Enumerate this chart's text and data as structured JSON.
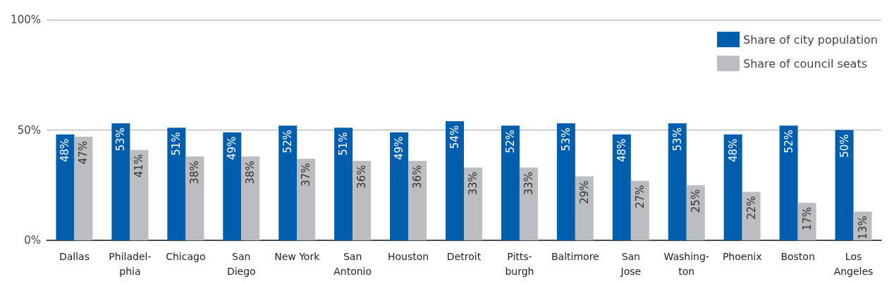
{
  "chart_data": {
    "type": "bar",
    "categories": [
      "Dallas",
      "Philadel-\nphia",
      "Chicago",
      "San\nDiego",
      "New York",
      "San\nAntonio",
      "Houston",
      "Detroit",
      "Pitts-\nburgh",
      "Baltimore",
      "San\nJose",
      "Washing-\nton",
      "Phoenix",
      "Boston",
      "Los\nAngeles"
    ],
    "series": [
      {
        "name": "Share of city population",
        "color": "#005eac",
        "values": [
          48,
          53,
          51,
          49,
          52,
          51,
          49,
          54,
          52,
          53,
          48,
          53,
          48,
          52,
          50
        ],
        "value_labels": [
          "48%",
          "53%",
          "51%",
          "49%",
          "52%",
          "51%",
          "49%",
          "54%",
          "52%",
          "53%",
          "48%",
          "53%",
          "48%",
          "52%",
          "50%"
        ]
      },
      {
        "name": "Share of council seats",
        "color": "#bcbdc1",
        "values": [
          47,
          41,
          38,
          38,
          37,
          36,
          36,
          33,
          33,
          29,
          27,
          25,
          22,
          17,
          13
        ],
        "value_labels": [
          "47%",
          "41%",
          "38%",
          "38%",
          "37%",
          "36%",
          "36%",
          "33%",
          "33%",
          "29%",
          "27%",
          "25%",
          "22%",
          "17%",
          "13%"
        ]
      }
    ],
    "ylim": [
      0,
      100
    ],
    "yticks": [
      {
        "value": 0,
        "label": "0%"
      },
      {
        "value": 50,
        "label": "50%"
      },
      {
        "value": 100,
        "label": "100%"
      }
    ],
    "grid": "y",
    "legend": "top right"
  }
}
